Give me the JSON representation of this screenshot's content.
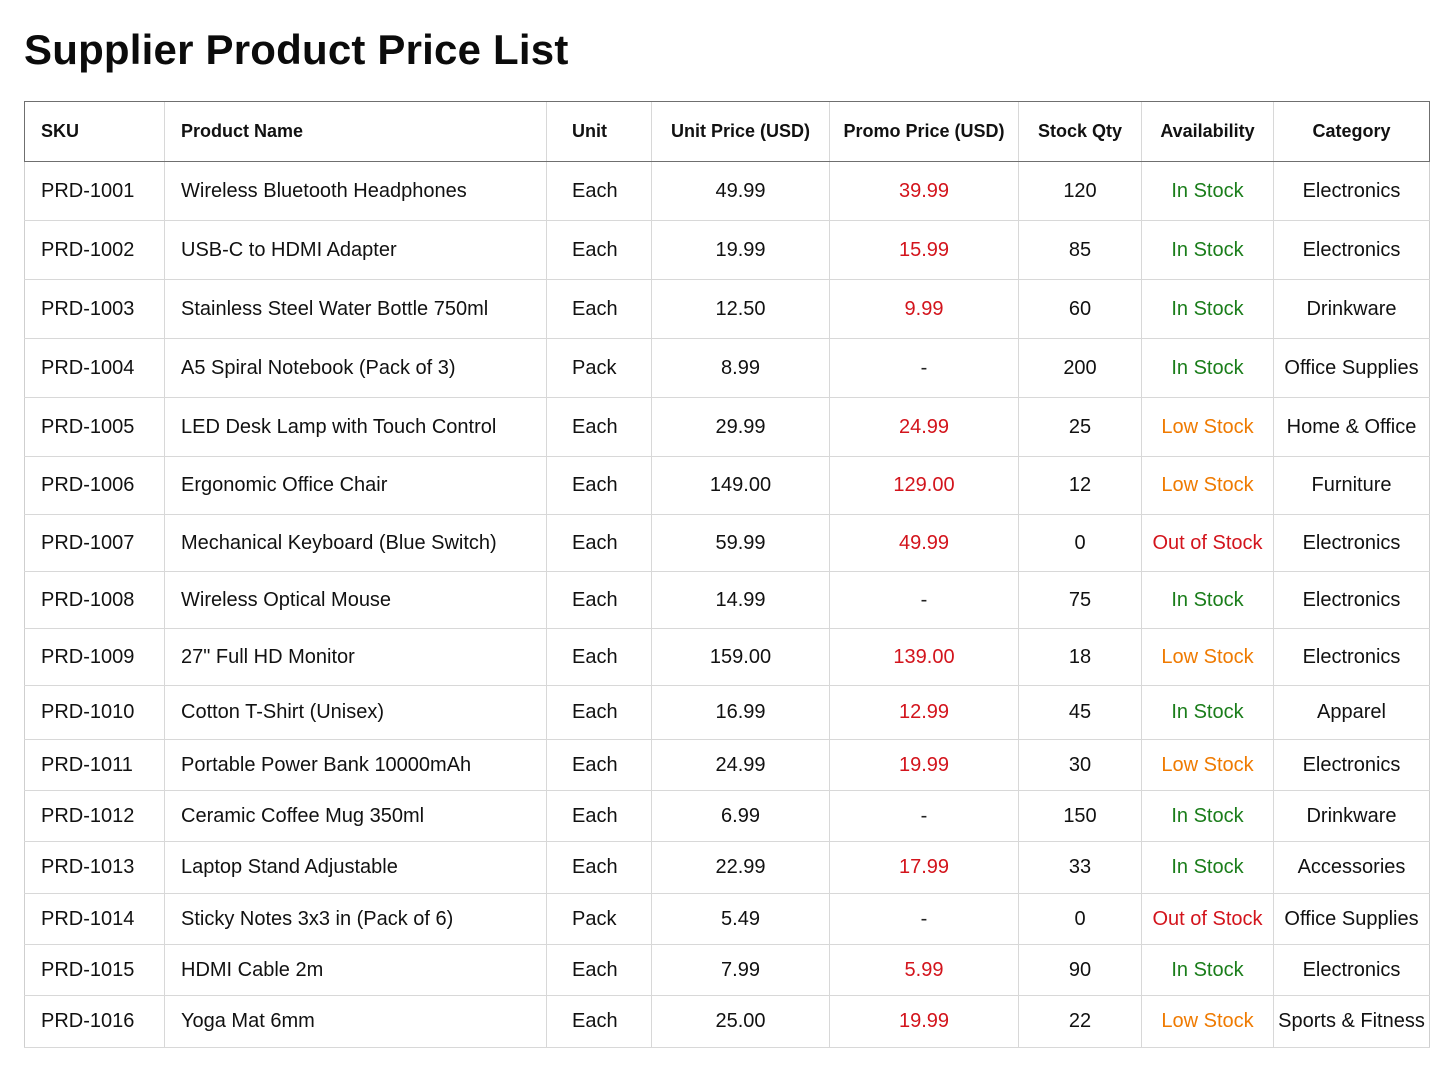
{
  "title": "Supplier Product Price List",
  "colors": {
    "in_stock": "#1a7d1a",
    "low_stock": "#ef7a00",
    "out_of_stock": "#d3141c",
    "promo": "#d3141c"
  },
  "columns": [
    "SKU",
    "Product Name",
    "Unit",
    "Unit Price (USD)",
    "Promo Price (USD)",
    "Stock Qty",
    "Availability",
    "Category"
  ],
  "rows": [
    {
      "sku": "PRD-1001",
      "name": "Wireless Bluetooth Headphones",
      "unit": "Each",
      "price": "49.99",
      "promo": "39.99",
      "qty": "120",
      "availability": "In Stock",
      "category": "Electronics"
    },
    {
      "sku": "PRD-1002",
      "name": "USB-C to HDMI Adapter",
      "unit": "Each",
      "price": "19.99",
      "promo": "15.99",
      "qty": "85",
      "availability": "In Stock",
      "category": "Electronics"
    },
    {
      "sku": "PRD-1003",
      "name": "Stainless Steel Water Bottle 750ml",
      "unit": "Each",
      "price": "12.50",
      "promo": "9.99",
      "qty": "60",
      "availability": "In Stock",
      "category": "Drinkware"
    },
    {
      "sku": "PRD-1004",
      "name": "A5 Spiral Notebook (Pack of 3)",
      "unit": "Pack",
      "price": "8.99",
      "promo": "-",
      "qty": "200",
      "availability": "In Stock",
      "category": "Office Supplies"
    },
    {
      "sku": "PRD-1005",
      "name": "LED Desk Lamp with Touch Control",
      "unit": "Each",
      "price": "29.99",
      "promo": "24.99",
      "qty": "25",
      "availability": "Low Stock",
      "category": "Home & Office"
    },
    {
      "sku": "PRD-1006",
      "name": "Ergonomic Office Chair",
      "unit": "Each",
      "price": "149.00",
      "promo": "129.00",
      "qty": "12",
      "availability": "Low Stock",
      "category": "Furniture"
    },
    {
      "sku": "PRD-1007",
      "name": "Mechanical Keyboard (Blue Switch)",
      "unit": "Each",
      "price": "59.99",
      "promo": "49.99",
      "qty": "0",
      "availability": "Out of Stock",
      "category": "Electronics"
    },
    {
      "sku": "PRD-1008",
      "name": "Wireless Optical Mouse",
      "unit": "Each",
      "price": "14.99",
      "promo": "-",
      "qty": "75",
      "availability": "In Stock",
      "category": "Electronics"
    },
    {
      "sku": "PRD-1009",
      "name": "27\" Full HD Monitor",
      "unit": "Each",
      "price": "159.00",
      "promo": "139.00",
      "qty": "18",
      "availability": "Low Stock",
      "category": "Electronics"
    },
    {
      "sku": "PRD-1010",
      "name": "Cotton T-Shirt (Unisex)",
      "unit": "Each",
      "price": "16.99",
      "promo": "12.99",
      "qty": "45",
      "availability": "In Stock",
      "category": "Apparel"
    },
    {
      "sku": "PRD-1011",
      "name": "Portable Power Bank 10000mAh",
      "unit": "Each",
      "price": "24.99",
      "promo": "19.99",
      "qty": "30",
      "availability": "Low Stock",
      "category": "Electronics"
    },
    {
      "sku": "PRD-1012",
      "name": "Ceramic Coffee Mug 350ml",
      "unit": "Each",
      "price": "6.99",
      "promo": "-",
      "qty": "150",
      "availability": "In Stock",
      "category": "Drinkware"
    },
    {
      "sku": "PRD-1013",
      "name": "Laptop Stand Adjustable",
      "unit": "Each",
      "price": "22.99",
      "promo": "17.99",
      "qty": "33",
      "availability": "In Stock",
      "category": "Accessories"
    },
    {
      "sku": "PRD-1014",
      "name": "Sticky Notes 3x3 in (Pack of 6)",
      "unit": "Pack",
      "price": "5.49",
      "promo": "-",
      "qty": "0",
      "availability": "Out of Stock",
      "category": "Office Supplies"
    },
    {
      "sku": "PRD-1015",
      "name": "HDMI Cable 2m",
      "unit": "Each",
      "price": "7.99",
      "promo": "5.99",
      "qty": "90",
      "availability": "In Stock",
      "category": "Electronics"
    },
    {
      "sku": "PRD-1016",
      "name": "Yoga Mat 6mm",
      "unit": "Each",
      "price": "25.00",
      "promo": "19.99",
      "qty": "22",
      "availability": "Low Stock",
      "category": "Sports & Fitness"
    }
  ]
}
